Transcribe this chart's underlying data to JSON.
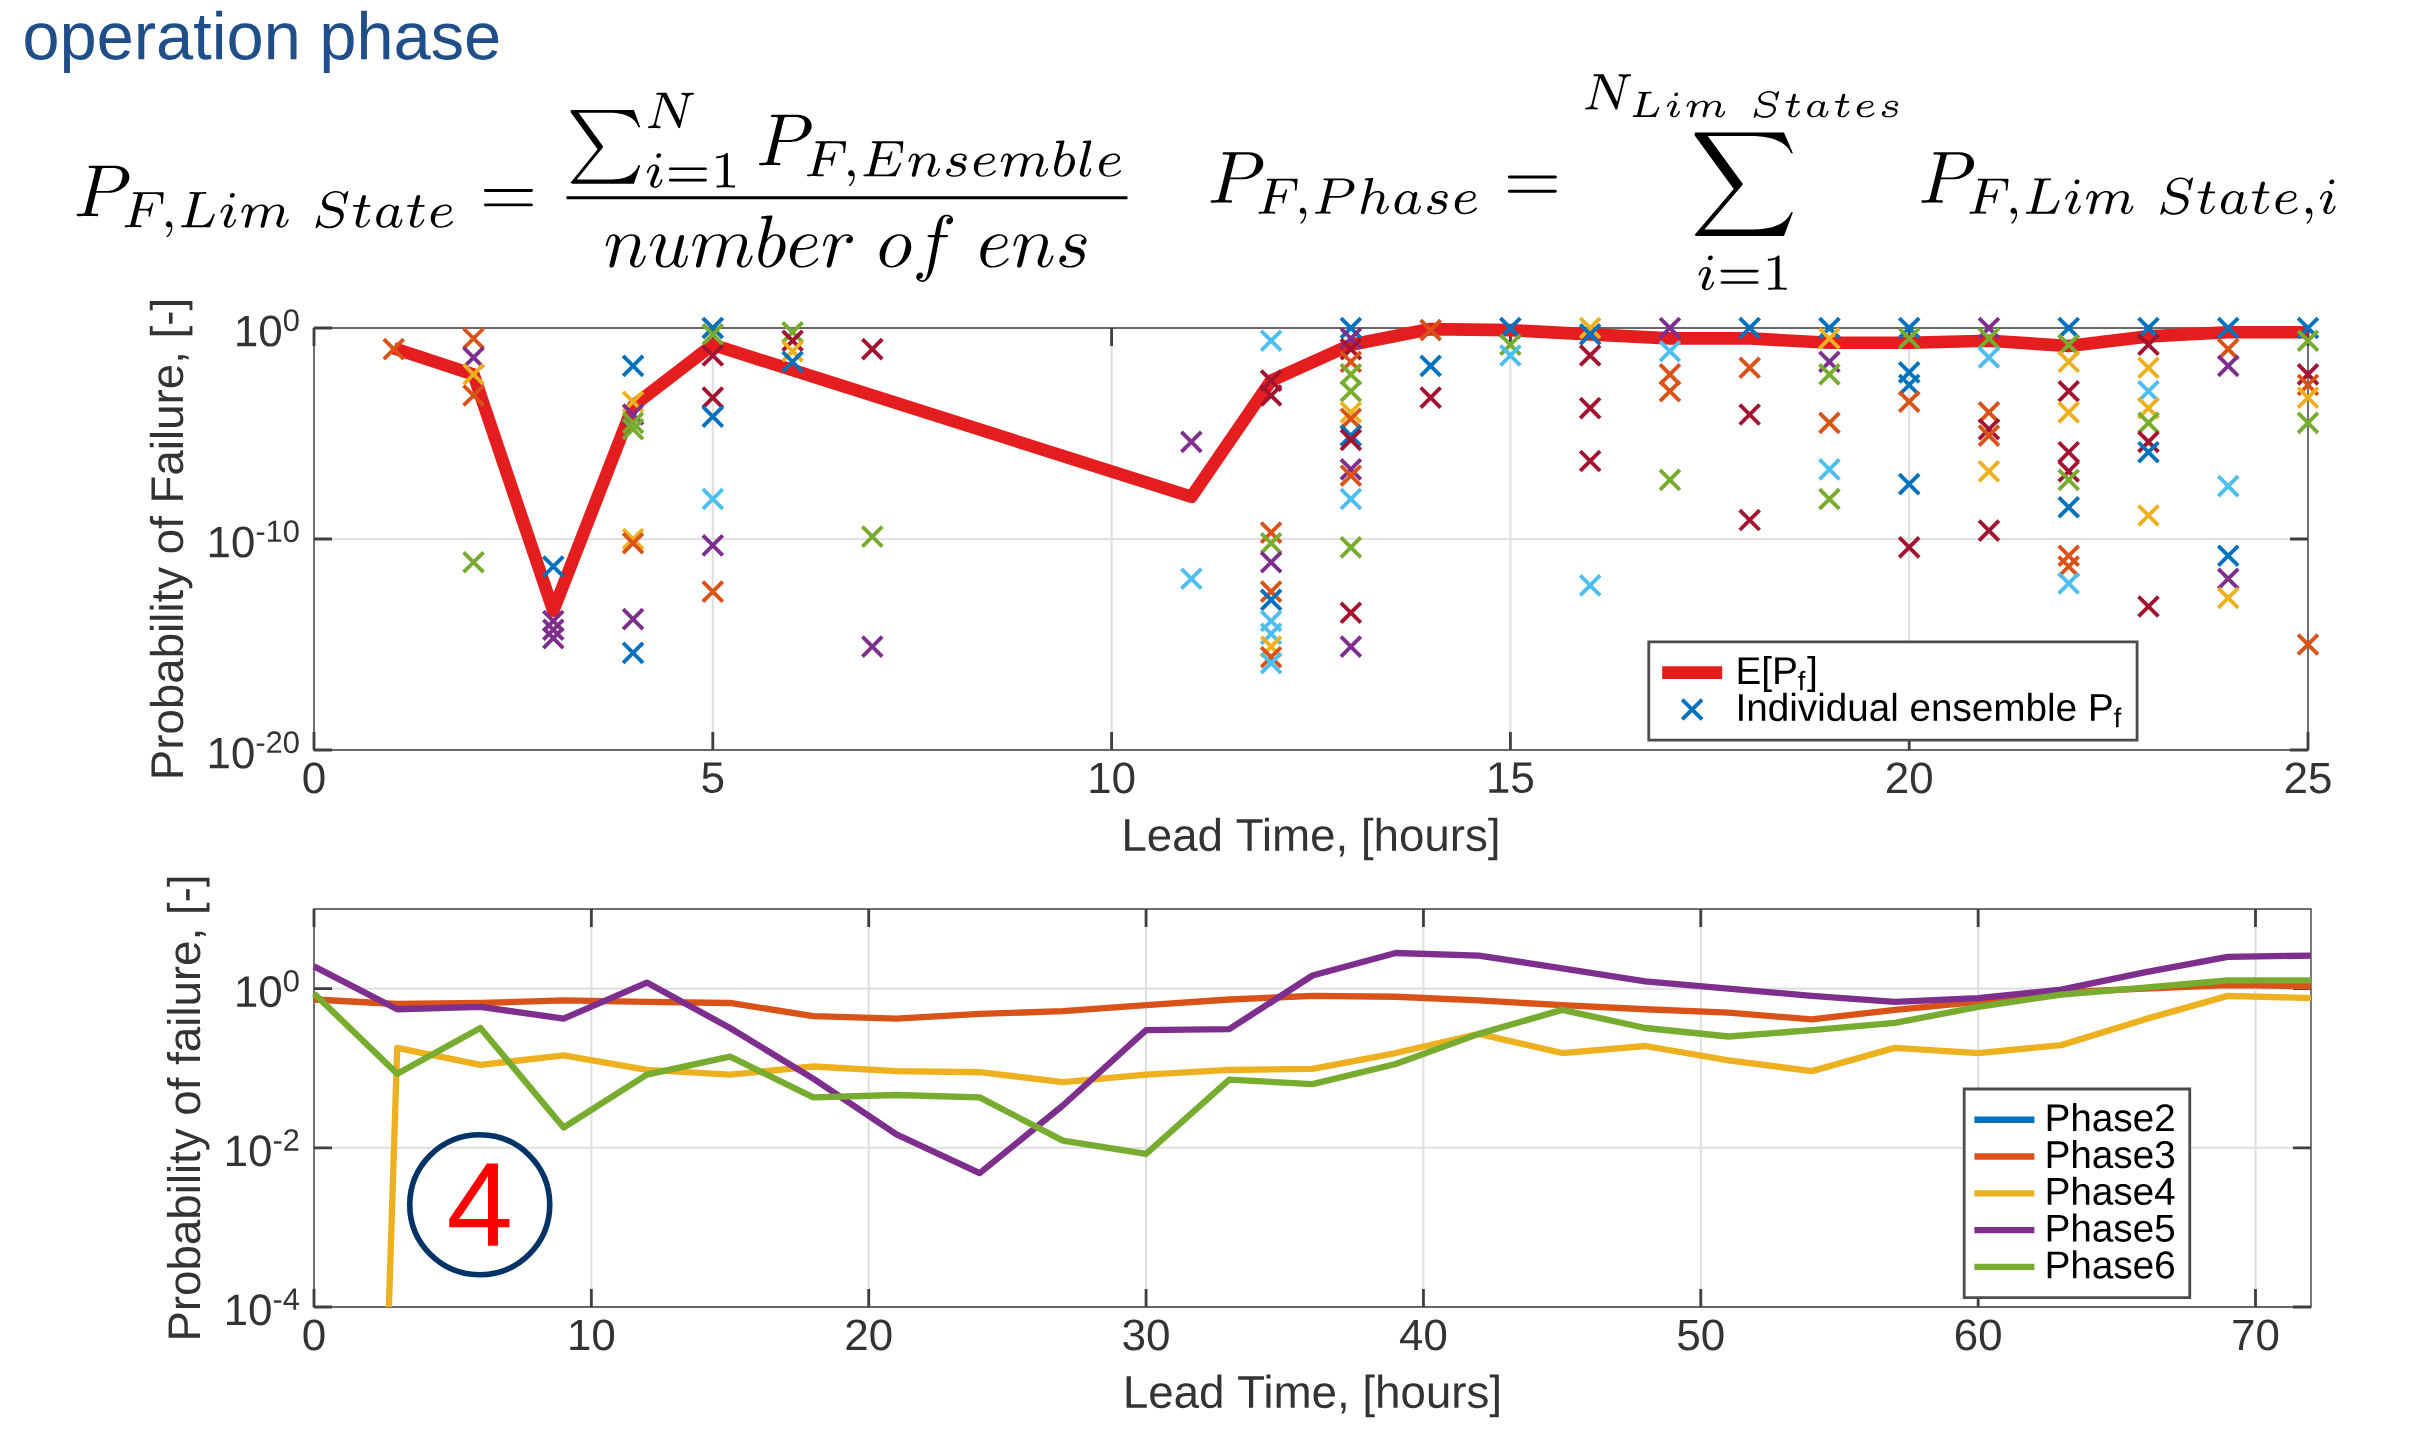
{
  "chart_data": [
    {
      "type": "line",
      "xlabel": "Lead Time, [hours]",
      "ylabel": "Probability of Failure, [-]",
      "log": "y",
      "grid": true,
      "legend": "bottom right",
      "xlim": [
        0,
        25
      ],
      "xticks": [
        0,
        5,
        10,
        15,
        20,
        25
      ],
      "ylim": [
        1e-20,
        1
      ],
      "yticks": [
        {
          "value": 1e-20,
          "label": "10$^{-20}$"
        },
        {
          "value": 1e-10,
          "label": "10$^{-10}$"
        },
        {
          "value": 1,
          "label": "10$^{0}$"
        }
      ],
      "annotations": [
        "operation phase",
        "P_{F,Lim\\ State} = \\frac{\\sum_{i=1}^{N} P_{F,Ensemble}}{number\\ of\\ ens}",
        "P_{F,Phase} = \\sum_{i=1}^{N_{Lim\\ States}} P_{F,Lim\\ State,i}"
      ],
      "series": [
        {
          "name": "E[P$_{f}$]",
          "type": "line",
          "color": "#e41e1e",
          "x": [
            1,
            2,
            3,
            4,
            5,
            11,
            12,
            13,
            14,
            15,
            16,
            17,
            18,
            19,
            20,
            21,
            22,
            23,
            24,
            25
          ],
          "values": [
            0.11,
            0.0063,
            4e-14,
            0.0002,
            0.16,
            1e-08,
            0.0032,
            0.16,
            0.89,
            0.79,
            0.5,
            0.32,
            0.32,
            0.2,
            0.2,
            0.25,
            0.14,
            0.4,
            0.63,
            0.63
          ]
        },
        {
          "name": "Individual ensemble P$_{f}$",
          "type": "scatter",
          "marker": "cross",
          "color": "#0072bd",
          "x": [
            1,
            2,
            2,
            2,
            2,
            2,
            3,
            3,
            3,
            3,
            4,
            4,
            4,
            4,
            4,
            4,
            4,
            4,
            4,
            5,
            5,
            5,
            5,
            5,
            5,
            5,
            5,
            5,
            6,
            6,
            6,
            6,
            7,
            7,
            7,
            11,
            11,
            12,
            12,
            12,
            12,
            12,
            12,
            12,
            12,
            12,
            12,
            12,
            12,
            12,
            13,
            13,
            13,
            13,
            13,
            13,
            13,
            13,
            13,
            13,
            13,
            13,
            13,
            13,
            13,
            13,
            14,
            14,
            14,
            15,
            15,
            15,
            16,
            16,
            16,
            16,
            16,
            16,
            17,
            17,
            17,
            17,
            17,
            18,
            18,
            18,
            18,
            19,
            19,
            19,
            19,
            19,
            19,
            19,
            20,
            20,
            20,
            20,
            20,
            20,
            20,
            21,
            21,
            21,
            21,
            21,
            21,
            21,
            21,
            22,
            22,
            22,
            22,
            22,
            22,
            22,
            22,
            22,
            22,
            22,
            22,
            23,
            23,
            23,
            23,
            23,
            23,
            23,
            23,
            23,
            23,
            24,
            24,
            24,
            24,
            24,
            24,
            24,
            25,
            25,
            25,
            25,
            25,
            25,
            25
          ],
          "values": [
            0.1,
            0.32,
            0.04,
            0.0063,
            0.00063,
            7.9e-12,
            5e-12,
            1.3e-14,
            5e-15,
            2e-15,
            0.016,
            0.00032,
            7.9e-05,
            3.2e-05,
            1.6e-05,
            1e-10,
            6.3e-11,
            1.6e-14,
            4e-16,
            1,
            1,
            0.5,
            0.05,
            0.0005,
            6.3e-05,
            7.9e-09,
            5e-11,
            3.2e-13,
            0.63,
            0.25,
            0.079,
            0.025,
            0.1,
            1.3e-10,
            7.9e-16,
            4e-06,
            1.3e-12,
            0.25,
            0.0032,
            0.00063,
            2e-10,
            6.3e-11,
            7.9e-12,
            3.2e-13,
            1.3e-13,
            1.3e-14,
            3.2e-15,
            7.9e-16,
            2.5e-16,
            1.3e-16,
            1,
            0.32,
            0.1,
            0.025,
            0.0063,
            0.001,
            0.0001,
            5e-05,
            7.9e-06,
            5e-06,
            2e-07,
            1e-07,
            7.9e-09,
            4e-11,
            3.2e-14,
            7.9e-16,
            0.79,
            0.016,
            0.0005,
            1,
            0.16,
            0.05,
            1,
            0.5,
            0.05,
            0.00016,
            5e-07,
            6.3e-13,
            1,
            0.079,
            0.0063,
            0.001,
            6.3e-08,
            1,
            0.013,
            7.9e-05,
            7.9e-10,
            1,
            0.32,
            0.025,
            0.0063,
            3.2e-05,
            2e-07,
            7.9e-09,
            1,
            0.32,
            0.0079,
            0.002,
            0.00032,
            4e-08,
            4e-11,
            1,
            0.32,
            0.04,
            0.0001,
            1.6e-05,
            7.9e-06,
            1.6e-07,
            2.5e-10,
            1,
            0.16,
            0.025,
            0.001,
            0.0001,
            1.3e-06,
            1.6e-07,
            6.3e-08,
            3.2e-09,
            1.6e-11,
            5e-12,
            7.9e-13,
            1,
            0.16,
            0.013,
            0.001,
            0.00016,
            3.2e-05,
            4e-06,
            1.3e-06,
            1.3e-09,
            6.3e-14,
            1,
            0.1,
            0.016,
            3.2e-08,
            1.6e-11,
            1.3e-12,
            1.6e-13,
            1,
            0.25,
            0.0063,
            0.002,
            0.0005,
            3.2e-05,
            1e-15
          ],
          "colors": [
            "#d95319",
            "#d95319",
            "#7e2f8e",
            "#edb120",
            "#d95319",
            "#77ac30",
            "#0072bd",
            "#7e2f8e",
            "#7e2f8e",
            "#7e2f8e",
            "#0072bd",
            "#edb120",
            "#7e2f8e",
            "#77ac30",
            "#77ac30",
            "#edb120",
            "#d95319",
            "#7e2f8e",
            "#0072bd",
            "#edb120",
            "#0072bd",
            "#77ac30",
            "#a2142f",
            "#a2142f",
            "#0072bd",
            "#4dbeee",
            "#7e2f8e",
            "#d95319",
            "#77ac30",
            "#a2142f",
            "#edb120",
            "#0072bd",
            "#a2142f",
            "#77ac30",
            "#7e2f8e",
            "#7e2f8e",
            "#4dbeee",
            "#4dbeee",
            "#a2142f",
            "#a2142f",
            "#d95319",
            "#77ac30",
            "#7e2f8e",
            "#d95319",
            "#0072bd",
            "#4dbeee",
            "#4dbeee",
            "#edb120",
            "#d95319",
            "#4dbeee",
            "#0072bd",
            "#7e2f8e",
            "#a2142f",
            "#d95319",
            "#77ac30",
            "#77ac30",
            "#edb120",
            "#d95319",
            "#0072bd",
            "#a2142f",
            "#7e2f8e",
            "#d95319",
            "#4dbeee",
            "#77ac30",
            "#a2142f",
            "#7e2f8e",
            "#d95319",
            "#0072bd",
            "#a2142f",
            "#0072bd",
            "#77ac30",
            "#4dbeee",
            "#edb120",
            "#0072bd",
            "#a2142f",
            "#a2142f",
            "#a2142f",
            "#4dbeee",
            "#7e2f8e",
            "#4dbeee",
            "#d95319",
            "#d95319",
            "#77ac30",
            "#0072bd",
            "#d95319",
            "#a2142f",
            "#a2142f",
            "#0072bd",
            "#edb120",
            "#7e2f8e",
            "#77ac30",
            "#d95319",
            "#4dbeee",
            "#77ac30",
            "#0072bd",
            "#77ac30",
            "#0072bd",
            "#0072bd",
            "#d95319",
            "#0072bd",
            "#a2142f",
            "#7e2f8e",
            "#77ac30",
            "#4dbeee",
            "#d95319",
            "#a2142f",
            "#d95319",
            "#edb120",
            "#a2142f",
            "#0072bd",
            "#77ac30",
            "#edb120",
            "#a2142f",
            "#edb120",
            "#a2142f",
            "#a2142f",
            "#77ac30",
            "#0072bd",
            "#d95319",
            "#d95319",
            "#4dbeee",
            "#0072bd",
            "#a2142f",
            "#edb120",
            "#4dbeee",
            "#edb120",
            "#77ac30",
            "#a2142f",
            "#0072bd",
            "#edb120",
            "#a2142f",
            "#0072bd",
            "#d95319",
            "#7e2f8e",
            "#4dbeee",
            "#0072bd",
            "#7e2f8e",
            "#edb120",
            "#0072bd",
            "#77ac30",
            "#a2142f",
            "#d95319",
            "#edb120",
            "#77ac30",
            "#d95319"
          ]
        }
      ]
    },
    {
      "type": "line",
      "xlabel": "Lead Time, [hours]",
      "ylabel": "Probability of failure, [-]",
      "log": "y",
      "grid": true,
      "legend": "bottom right",
      "xlim": [
        0,
        72
      ],
      "xticks": [
        0,
        10,
        20,
        30,
        40,
        50,
        60,
        70
      ],
      "ylim": [
        0.0001,
        10
      ],
      "yticks": [
        {
          "value": 0.0001,
          "label": "10$^{-4}$"
        },
        {
          "value": 0.01,
          "label": "10$^{-2}$"
        },
        {
          "value": 1,
          "label": "10$^{0}$"
        }
      ],
      "annotations": [
        "4"
      ],
      "x": [
        0,
        3,
        6,
        9,
        12,
        15,
        18,
        21,
        24,
        27,
        30,
        33,
        36,
        39,
        42,
        45,
        48,
        51,
        54,
        57,
        60,
        63,
        66,
        69,
        72
      ],
      "series": [
        {
          "name": "Phase2",
          "color": "#0072bd",
          "values": [
            null,
            null,
            null,
            null,
            null,
            null,
            null,
            null,
            null,
            null,
            null,
            null,
            null,
            null,
            null,
            null,
            null,
            null,
            null,
            null,
            null,
            null,
            null,
            null,
            null
          ]
        },
        {
          "name": "Phase3",
          "color": "#d95319",
          "values": [
            0.73,
            0.64,
            0.66,
            0.71,
            0.68,
            0.66,
            0.45,
            0.42,
            0.48,
            0.52,
            0.62,
            0.73,
            0.81,
            0.79,
            0.71,
            0.62,
            0.55,
            0.5,
            0.41,
            0.54,
            0.68,
            0.9,
            1.0,
            1.11,
            1.07
          ]
        },
        {
          "name": "Phase4",
          "color": "#edb120",
          "x": [
            2.7,
            3,
            6,
            9,
            12,
            15,
            18,
            21,
            24,
            27,
            30,
            33,
            36,
            39,
            42,
            45,
            48,
            51,
            54,
            57,
            60,
            63,
            66,
            69,
            72
          ],
          "values": [
            0.0001,
            0.18,
            0.11,
            0.145,
            0.095,
            0.083,
            0.105,
            0.092,
            0.089,
            0.067,
            0.083,
            0.095,
            0.098,
            0.155,
            0.27,
            0.155,
            0.19,
            0.125,
            0.092,
            0.18,
            0.155,
            0.195,
            0.41,
            0.81,
            0.76
          ]
        },
        {
          "name": "Phase5",
          "color": "#7e2f8e",
          "values": [
            1.9,
            0.55,
            0.59,
            0.42,
            1.19,
            0.32,
            0.074,
            0.0147,
            0.0048,
            0.034,
            0.3,
            0.31,
            1.46,
            2.8,
            2.6,
            1.8,
            1.23,
            1.0,
            0.81,
            0.68,
            0.76,
            0.97,
            1.6,
            2.5,
            2.6
          ]
        },
        {
          "name": "Phase6",
          "color": "#77ac30",
          "values": [
            0.87,
            0.085,
            0.32,
            0.018,
            0.083,
            0.14,
            0.043,
            0.046,
            0.043,
            0.0123,
            0.0084,
            0.072,
            0.063,
            0.113,
            0.27,
            0.54,
            0.32,
            0.25,
            0.3,
            0.37,
            0.59,
            0.84,
            1.03,
            1.27,
            1.27
          ]
        }
      ]
    }
  ]
}
